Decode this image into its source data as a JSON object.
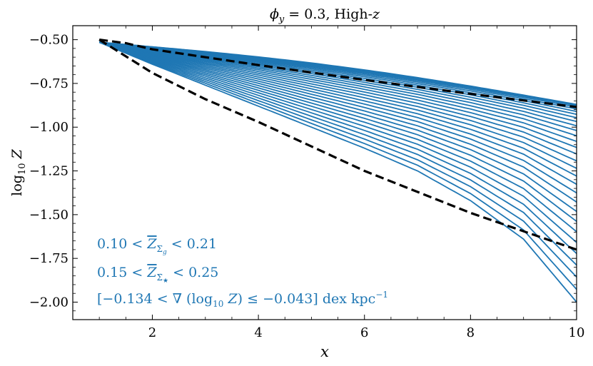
{
  "chart_data": {
    "type": "line",
    "title": "ϕy = 0.3, High-z",
    "xlabel": "x",
    "ylabel": "log10 Z",
    "xlim": [
      0.5,
      10
    ],
    "ylim": [
      -2.1,
      -0.42
    ],
    "x_ticks": [
      2,
      4,
      6,
      8,
      10
    ],
    "x_tick_labels": [
      "2",
      "4",
      "6",
      "8",
      "10"
    ],
    "y_ticks": [
      -0.5,
      -0.75,
      -1.0,
      -1.25,
      -1.5,
      -1.75,
      -2.0
    ],
    "y_tick_labels": [
      "−0.50",
      "−0.75",
      "−1.00",
      "−1.25",
      "−1.50",
      "−1.75",
      "−2.00"
    ],
    "grid": false,
    "colors": {
      "model_lines": "#1f77b4",
      "bounds": "#000000",
      "annotation": "#1f77b4"
    },
    "model_family": {
      "x_start": 1.0,
      "y_start": -0.515,
      "x_end": 10,
      "count": 30,
      "end_values_top": -0.87,
      "end_values_bottom": -2.0,
      "bottom_curve_points": [
        [
          1.0,
          -0.515
        ],
        [
          2,
          -0.64
        ],
        [
          4,
          -0.88
        ],
        [
          6,
          -1.12
        ],
        [
          7,
          -1.25
        ],
        [
          8,
          -1.42
        ],
        [
          9,
          -1.64
        ],
        [
          10,
          -2.0
        ]
      ]
    },
    "dashed_bounds": [
      {
        "x": [
          1.0,
          1.5,
          2,
          4,
          6,
          8,
          10
        ],
        "y": [
          -0.5,
          -0.52,
          -0.555,
          -0.645,
          -0.73,
          -0.81,
          -0.885
        ]
      },
      {
        "x": [
          1.0,
          2,
          3,
          4,
          6,
          8,
          10
        ],
        "y": [
          -0.5,
          -0.69,
          -0.84,
          -0.97,
          -1.25,
          -1.49,
          -1.7
        ]
      }
    ],
    "annotations": [
      {
        "text": "0.10 < Z̄Σg < 0.21"
      },
      {
        "text": "0.15 < Z̄Σ̇★ < 0.25"
      },
      {
        "text": "[−0.134 < ∇(log10 Z) ≤ −0.043] dex kpc−1"
      }
    ]
  }
}
